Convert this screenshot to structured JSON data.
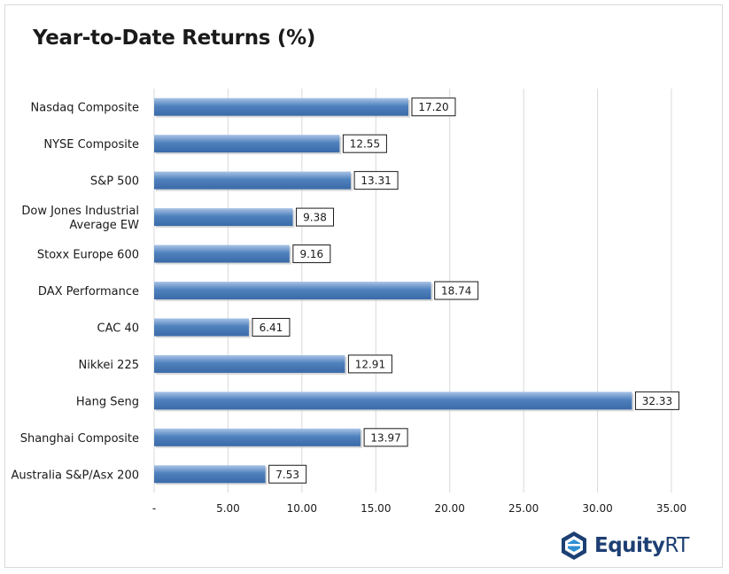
{
  "chart_data": {
    "type": "bar",
    "orientation": "horizontal",
    "title": "Year-to-Date Returns (%)",
    "categories": [
      "Nasdaq Composite",
      "NYSE Composite",
      "S&P 500",
      "Dow Jones Industrial Average EW",
      "Stoxx Europe 600",
      "DAX Performance",
      "CAC 40",
      "Nikkei 225",
      "Hang Seng",
      "Shanghai Composite",
      "Australia S&P/Asx 200"
    ],
    "category_lines": [
      [
        "Nasdaq Composite"
      ],
      [
        "NYSE Composite"
      ],
      [
        "S&P 500"
      ],
      [
        "Dow Jones Industrial",
        "Average EW"
      ],
      [
        "Stoxx Europe 600"
      ],
      [
        "DAX Performance"
      ],
      [
        "CAC 40"
      ],
      [
        "Nikkei 225"
      ],
      [
        "Hang Seng"
      ],
      [
        "Shanghai Composite"
      ],
      [
        "Australia S&P/Asx 200"
      ]
    ],
    "values": [
      17.2,
      12.55,
      13.31,
      9.38,
      9.16,
      18.74,
      6.41,
      12.91,
      32.33,
      13.97,
      7.53
    ],
    "value_labels": [
      "17.20",
      "12.55",
      "13.31",
      "9.38",
      "9.16",
      "18.74",
      "6.41",
      "12.91",
      "32.33",
      "13.97",
      "7.53"
    ],
    "xlim": [
      0,
      35
    ],
    "x_ticks": [
      0,
      5,
      10,
      15,
      20,
      25,
      30,
      35
    ],
    "x_tick_labels": [
      "-",
      "5.00",
      "10.00",
      "15.00",
      "20.00",
      "25.00",
      "30.00",
      "35.00"
    ],
    "grid": true,
    "bar_color": "#4f81bd",
    "bar_color_light": "#a9c3e6",
    "bar_color_dark": "#3a6aa8"
  },
  "brand": {
    "logo_text_bold": "Equity",
    "logo_text_regular": "RT",
    "logo_color": "#1d3f73",
    "logo_accent": "#2f8fd4"
  }
}
